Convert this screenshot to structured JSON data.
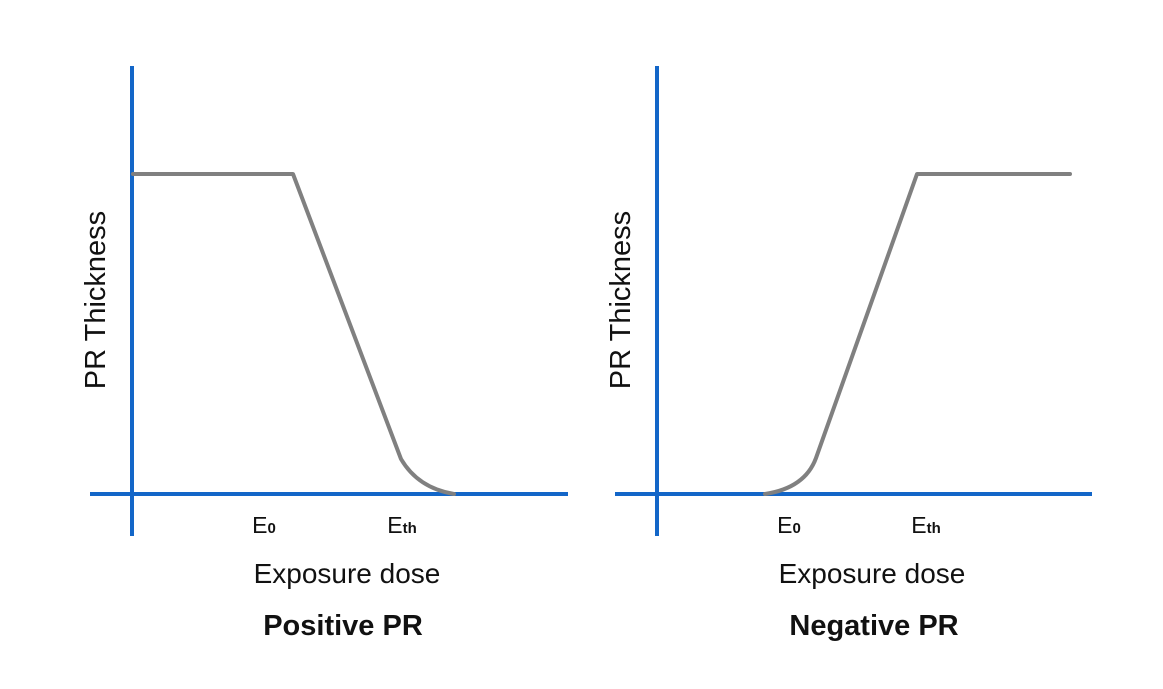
{
  "colors": {
    "axis": "#1366c8",
    "curve": "#808080",
    "text": "#111111"
  },
  "panels": [
    {
      "title": "Positive PR",
      "xlabel": "Exposure dose",
      "ylabel": "PR Thickness",
      "tick_E0": {
        "base": "E",
        "sub": "0"
      },
      "tick_Eth": {
        "base": "E",
        "sub": "th"
      }
    },
    {
      "title": "Negative PR",
      "xlabel": "Exposure dose",
      "ylabel": "PR Thickness",
      "tick_E0": {
        "base": "E",
        "sub": "0"
      },
      "tick_Eth": {
        "base": "E",
        "sub": "th"
      }
    }
  ]
}
